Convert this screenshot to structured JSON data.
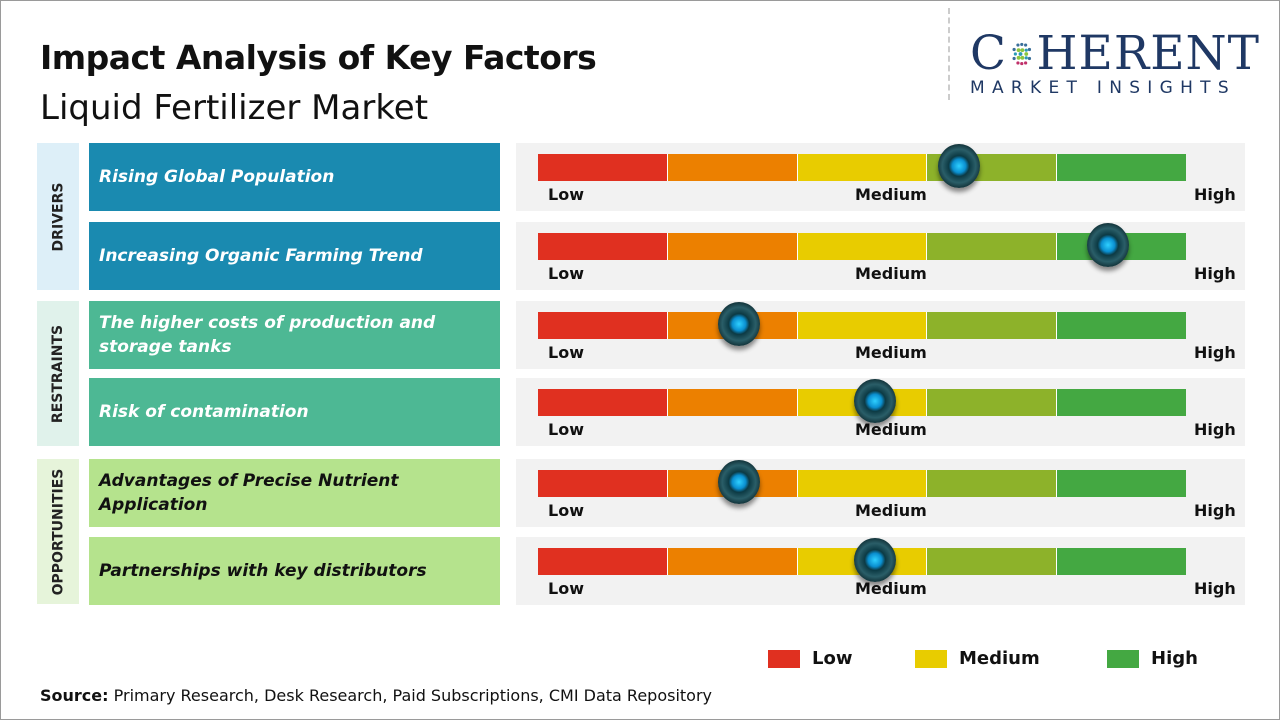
{
  "header": {
    "title": "Impact Analysis of Key Factors",
    "subtitle": "Liquid Fertilizer Market"
  },
  "logo": {
    "main_before": "C",
    "main_after": "HERENT",
    "sub": "MARKET INSIGHTS"
  },
  "scale": {
    "low": "Low",
    "medium": "Medium",
    "high": "High",
    "segment_colors": [
      "#e03020",
      "#ec8000",
      "#e8cc00",
      "#8db22a",
      "#44a842"
    ]
  },
  "categories": [
    {
      "label": "DRIVERS",
      "bg": "#ddeff8",
      "factor_color": "#1a8ab0",
      "text_color": "#ffffff"
    },
    {
      "label": "RESTRAINTS",
      "bg": "#e0f2eb",
      "factor_color": "#4db894",
      "text_color": "#ffffff"
    },
    {
      "label": "OPPORTUNITIES",
      "bg": "#e6f4da",
      "factor_color": "#b5e38d",
      "text_color": "#111111"
    }
  ],
  "factors": [
    {
      "label": "Rising Global Population",
      "category": 0,
      "impact": 0.65
    },
    {
      "label": "Increasing Organic Farming Trend",
      "category": 0,
      "impact": 0.88
    },
    {
      "label": "The higher costs of production and storage tanks",
      "category": 1,
      "impact": 0.31
    },
    {
      "label": "Risk of contamination",
      "category": 1,
      "impact": 0.52
    },
    {
      "label": "Advantages of Precise Nutrient Application",
      "category": 2,
      "impact": 0.31
    },
    {
      "label": "Partnerships with key distributors",
      "category": 2,
      "impact": 0.52
    }
  ],
  "legend": [
    {
      "label": "Low",
      "color": "#e03020"
    },
    {
      "label": "Medium",
      "color": "#e8cc00"
    },
    {
      "label": "High",
      "color": "#44a842"
    }
  ],
  "source": {
    "label": "Source:",
    "text": " Primary Research, Desk Research, Paid Subscriptions, CMI Data Repository"
  }
}
